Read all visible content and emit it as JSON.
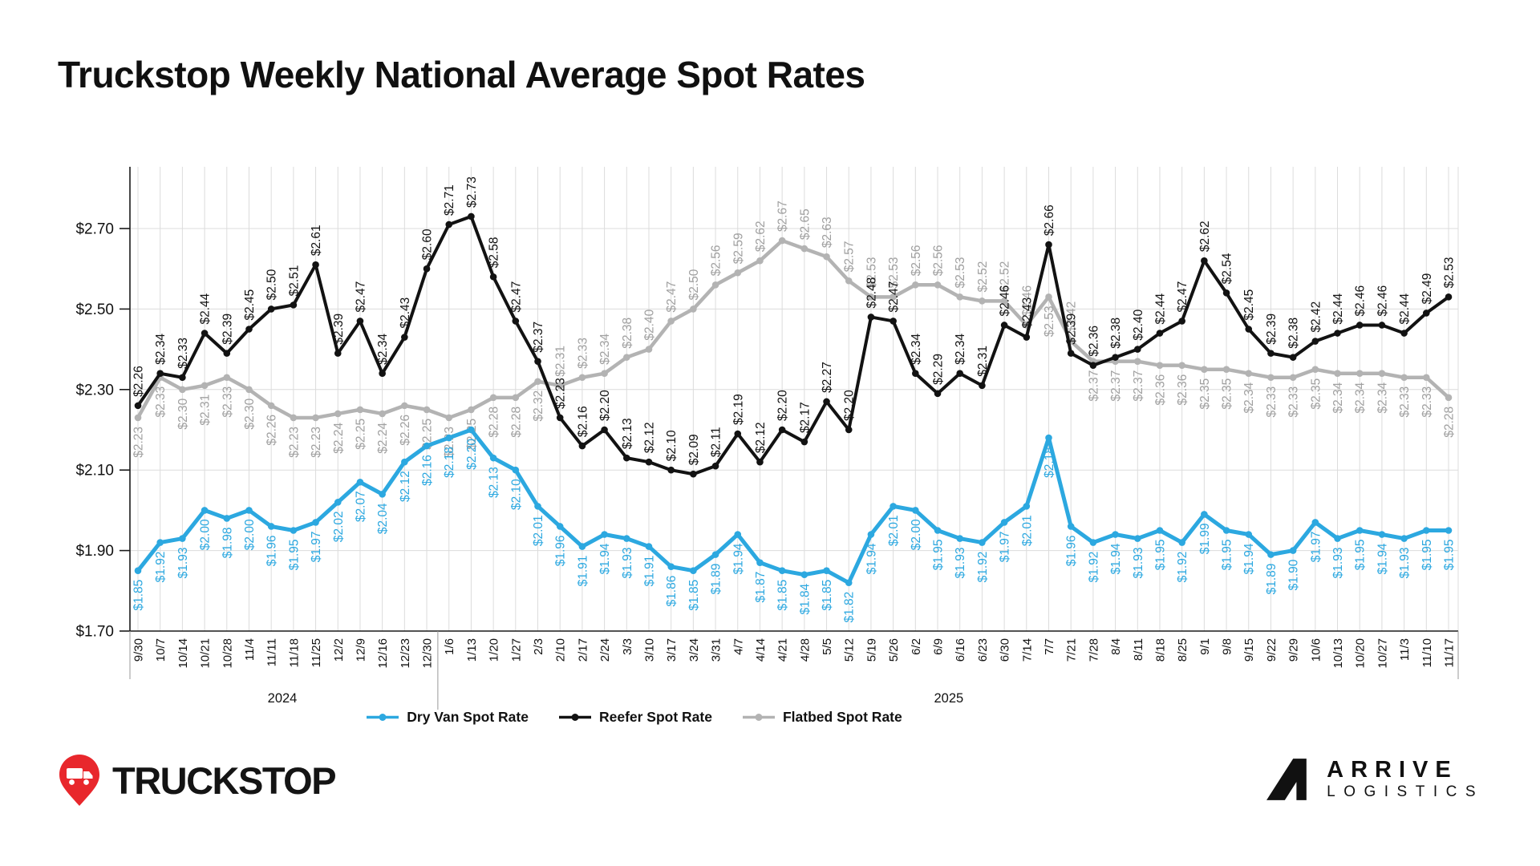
{
  "title": "Truckstop Weekly National Average Spot Rates",
  "chart_data": {
    "type": "line",
    "x": [
      "9/30",
      "10/7",
      "10/14",
      "10/21",
      "10/28",
      "11/4",
      "11/11",
      "11/18",
      "11/25",
      "12/2",
      "12/9",
      "12/16",
      "12/23",
      "12/30",
      "1/6",
      "1/13",
      "1/20",
      "1/27",
      "2/3",
      "2/10",
      "2/17",
      "2/24",
      "3/3",
      "3/10",
      "3/17",
      "3/24",
      "3/31",
      "4/7",
      "4/14",
      "4/21",
      "4/28",
      "5/5",
      "5/12",
      "5/19",
      "5/26",
      "6/2",
      "6/9",
      "6/16",
      "6/23",
      "6/30",
      "7/14",
      "7/7",
      "7/21",
      "7/28",
      "8/4",
      "8/11",
      "8/18",
      "8/25",
      "9/1",
      "9/8",
      "9/15",
      "9/22",
      "9/29",
      "10/6",
      "10/13",
      "10/20",
      "10/27",
      "11/3",
      "11/10",
      "11/17"
    ],
    "year_groups": [
      {
        "label": "2024",
        "start": 0,
        "end": 13
      },
      {
        "label": "2025",
        "start": 14,
        "end": 59
      }
    ],
    "y_ticks": [
      1.7,
      1.9,
      2.1,
      2.3,
      2.5,
      2.7
    ],
    "ylim": [
      1.7,
      2.85
    ],
    "label_prefix": "$",
    "grid": true,
    "legend_position": "bottom",
    "series": [
      {
        "name": "Dry Van Spot Rate",
        "color": "#2CA8E0",
        "label_color": "#2CA8E0",
        "label_side": "below",
        "values": [
          1.85,
          1.92,
          1.93,
          2.0,
          1.98,
          2.0,
          1.96,
          1.95,
          1.97,
          2.02,
          2.07,
          2.04,
          2.12,
          2.16,
          2.18,
          2.2,
          2.13,
          2.1,
          2.01,
          1.96,
          1.91,
          1.94,
          1.93,
          1.91,
          1.86,
          1.85,
          1.89,
          1.94,
          1.87,
          1.85,
          1.84,
          1.85,
          1.82,
          1.94,
          2.01,
          2.0,
          1.95,
          1.93,
          1.92,
          1.97,
          2.01,
          2.18,
          1.96,
          1.92,
          1.94,
          1.93,
          1.95,
          1.92,
          1.99,
          1.95,
          1.94,
          1.89,
          1.9,
          1.97,
          1.93,
          1.95,
          1.94,
          1.93,
          1.95,
          1.95
        ]
      },
      {
        "name": "Reefer Spot Rate",
        "color": "#121212",
        "label_color": "#121212",
        "label_side": "above",
        "values": [
          2.26,
          2.34,
          2.33,
          2.44,
          2.39,
          2.45,
          2.5,
          2.51,
          2.61,
          2.39,
          2.47,
          2.34,
          2.43,
          2.6,
          2.71,
          2.73,
          2.58,
          2.47,
          2.37,
          2.23,
          2.16,
          2.2,
          2.13,
          2.12,
          2.1,
          2.09,
          2.11,
          2.19,
          2.12,
          2.2,
          2.17,
          2.27,
          2.2,
          2.48,
          2.47,
          2.34,
          2.29,
          2.34,
          2.31,
          2.46,
          2.43,
          2.66,
          2.39,
          2.36,
          2.38,
          2.4,
          2.44,
          2.47,
          2.62,
          2.54,
          2.45,
          2.39,
          2.38,
          2.42,
          2.44,
          2.46,
          2.46,
          2.44,
          2.49,
          2.53
        ]
      },
      {
        "name": "Flatbed Spot Rate",
        "color": "#B3B3B3",
        "label_color": "#A0A0A0",
        "label_side": "auto",
        "values": [
          2.23,
          2.33,
          2.3,
          2.31,
          2.33,
          2.3,
          2.26,
          2.23,
          2.23,
          2.24,
          2.25,
          2.24,
          2.26,
          2.25,
          2.23,
          2.25,
          2.28,
          2.28,
          2.32,
          2.31,
          2.33,
          2.34,
          2.38,
          2.4,
          2.47,
          2.5,
          2.56,
          2.59,
          2.62,
          2.67,
          2.65,
          2.63,
          2.57,
          2.53,
          2.53,
          2.56,
          2.56,
          2.53,
          2.52,
          2.52,
          2.46,
          2.53,
          2.42,
          2.37,
          2.37,
          2.37,
          2.36,
          2.36,
          2.35,
          2.35,
          2.34,
          2.33,
          2.33,
          2.35,
          2.34,
          2.34,
          2.34,
          2.33,
          2.33,
          2.28
        ]
      }
    ]
  },
  "footer": {
    "truckstop_wordmark": "TRUCKSTOP",
    "arrive_wordmark": "ARRIVE",
    "arrive_wordmark_sub": "LOGISTICS"
  }
}
